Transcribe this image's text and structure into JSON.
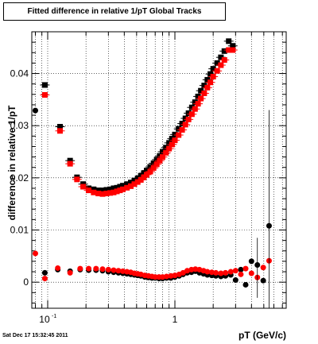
{
  "chart_data": {
    "type": "scatter",
    "title": "Fitted difference in relative 1/pT  Global Tracks",
    "xlabel": "pT (GeV/c)",
    "ylabel": "difference in relative 1/pT",
    "x_scale": "log",
    "xlim": [
      0.075,
      7.5
    ],
    "ylim": [
      -0.005,
      0.048
    ],
    "grid": true,
    "x_tick_labels": [
      {
        "value": 0.1,
        "base": "10",
        "exp": "-1"
      },
      {
        "value": 1,
        "base": "1",
        "exp": ""
      }
    ],
    "y_tick_labels": [
      "0",
      "0.01",
      "0.02",
      "0.03",
      "0.04"
    ],
    "y_tick_values": [
      0,
      0.01,
      0.02,
      0.03,
      0.04
    ],
    "series": [
      {
        "color": "#000000",
        "marker": "square",
        "x": [
          0.095,
          0.125,
          0.15,
          0.17,
          0.19,
          0.21,
          0.23,
          0.25,
          0.27,
          0.29,
          0.31,
          0.33,
          0.35,
          0.37,
          0.39,
          0.42,
          0.45,
          0.48,
          0.51,
          0.54,
          0.57,
          0.6,
          0.64,
          0.68,
          0.72,
          0.76,
          0.8,
          0.85,
          0.9,
          0.95,
          1.0,
          1.07,
          1.14,
          1.21,
          1.28,
          1.36,
          1.44,
          1.52,
          1.6,
          1.7,
          1.8,
          1.9,
          2.0,
          2.15,
          2.3,
          2.45,
          2.65,
          2.85
        ],
        "y": [
          0.0378,
          0.0298,
          0.0233,
          0.0201,
          0.0188,
          0.018,
          0.0178,
          0.0176,
          0.0176,
          0.0177,
          0.0178,
          0.018,
          0.0181,
          0.0183,
          0.0185,
          0.0188,
          0.0191,
          0.0195,
          0.0199,
          0.0204,
          0.0209,
          0.0214,
          0.0221,
          0.0228,
          0.0235,
          0.0242,
          0.025,
          0.0258,
          0.0267,
          0.0275,
          0.0283,
          0.0294,
          0.0304,
          0.0314,
          0.0324,
          0.0335,
          0.0345,
          0.0356,
          0.0367,
          0.0377,
          0.0388,
          0.0399,
          0.0409,
          0.042,
          0.0431,
          0.0443,
          0.0462,
          0.0453
        ]
      },
      {
        "color": "#ff0000",
        "marker": "square",
        "x": [
          0.095,
          0.125,
          0.15,
          0.17,
          0.19,
          0.21,
          0.23,
          0.25,
          0.27,
          0.29,
          0.31,
          0.33,
          0.35,
          0.37,
          0.39,
          0.42,
          0.45,
          0.48,
          0.51,
          0.54,
          0.57,
          0.6,
          0.64,
          0.68,
          0.72,
          0.76,
          0.8,
          0.85,
          0.9,
          0.95,
          1.0,
          1.07,
          1.14,
          1.21,
          1.28,
          1.36,
          1.44,
          1.52,
          1.6,
          1.7,
          1.8,
          1.9,
          2.0,
          2.15,
          2.3,
          2.45,
          2.65,
          2.85
        ],
        "y": [
          0.0359,
          0.029,
          0.0227,
          0.0197,
          0.0183,
          0.0176,
          0.0172,
          0.017,
          0.0169,
          0.017,
          0.0171,
          0.0172,
          0.0174,
          0.0176,
          0.0178,
          0.0181,
          0.0184,
          0.0188,
          0.0192,
          0.0196,
          0.0201,
          0.0206,
          0.0212,
          0.0219,
          0.0226,
          0.0233,
          0.024,
          0.0248,
          0.0256,
          0.0264,
          0.0272,
          0.0282,
          0.0292,
          0.0302,
          0.0312,
          0.0322,
          0.0332,
          0.0342,
          0.0352,
          0.0362,
          0.0373,
          0.0383,
          0.0394,
          0.0405,
          0.0416,
          0.0426,
          0.0445,
          0.0445
        ]
      },
      {
        "color": "#000000",
        "marker": "circle",
        "x": [
          0.08,
          0.095,
          0.12,
          0.15,
          0.18,
          0.21,
          0.24,
          0.27,
          0.3,
          0.33,
          0.36,
          0.39,
          0.42,
          0.45,
          0.48,
          0.51,
          0.54,
          0.58,
          0.62,
          0.66,
          0.7,
          0.75,
          0.8,
          0.86,
          0.93,
          1.0,
          1.08,
          1.16,
          1.25,
          1.35,
          1.45,
          1.56,
          1.68,
          1.8,
          1.95,
          2.1,
          2.3,
          2.5,
          2.75,
          3.0,
          3.3,
          3.6,
          4.0,
          4.45,
          4.95,
          5.5
        ],
        "y": [
          0.0329,
          0.0018,
          0.0024,
          0.0021,
          0.0024,
          0.0023,
          0.0023,
          0.0022,
          0.002,
          0.0019,
          0.0018,
          0.0017,
          0.0016,
          0.0015,
          0.0014,
          0.0013,
          0.0012,
          0.001,
          0.0009,
          0.0008,
          0.0008,
          0.0007,
          0.0007,
          0.0008,
          0.0008,
          0.001,
          0.0012,
          0.0015,
          0.0018,
          0.0019,
          0.0021,
          0.0018,
          0.0016,
          0.0014,
          0.0013,
          0.0012,
          0.0011,
          0.0012,
          0.0014,
          0.0004,
          0.0024,
          -0.0005,
          0.004,
          0.0033,
          0.0003,
          0.0108
        ]
      },
      {
        "color": "#ff0000",
        "marker": "circle",
        "x": [
          0.08,
          0.095,
          0.12,
          0.15,
          0.18,
          0.21,
          0.24,
          0.27,
          0.3,
          0.33,
          0.36,
          0.39,
          0.42,
          0.45,
          0.48,
          0.51,
          0.54,
          0.58,
          0.62,
          0.66,
          0.7,
          0.75,
          0.8,
          0.86,
          0.93,
          1.0,
          1.08,
          1.16,
          1.25,
          1.35,
          1.45,
          1.56,
          1.68,
          1.8,
          1.95,
          2.1,
          2.3,
          2.5,
          2.75,
          3.0,
          3.3,
          3.6,
          4.0,
          4.45,
          4.95,
          5.5
        ],
        "y": [
          0.0055,
          0.0007,
          0.0027,
          0.0018,
          0.0026,
          0.0026,
          0.0026,
          0.0025,
          0.0024,
          0.0023,
          0.0022,
          0.0021,
          0.002,
          0.0019,
          0.0017,
          0.0016,
          0.0015,
          0.0013,
          0.0012,
          0.0011,
          0.001,
          0.001,
          0.001,
          0.0011,
          0.0012,
          0.0013,
          0.0015,
          0.0018,
          0.0022,
          0.0024,
          0.0025,
          0.0024,
          0.0022,
          0.002,
          0.0019,
          0.0018,
          0.0017,
          0.0018,
          0.002,
          0.0022,
          0.0015,
          0.0026,
          0.0017,
          0.0009,
          0.0028,
          0.0041
        ]
      }
    ]
  },
  "footer": {
    "timestamp": "Sat Dec 17 15:32:45 2011"
  }
}
